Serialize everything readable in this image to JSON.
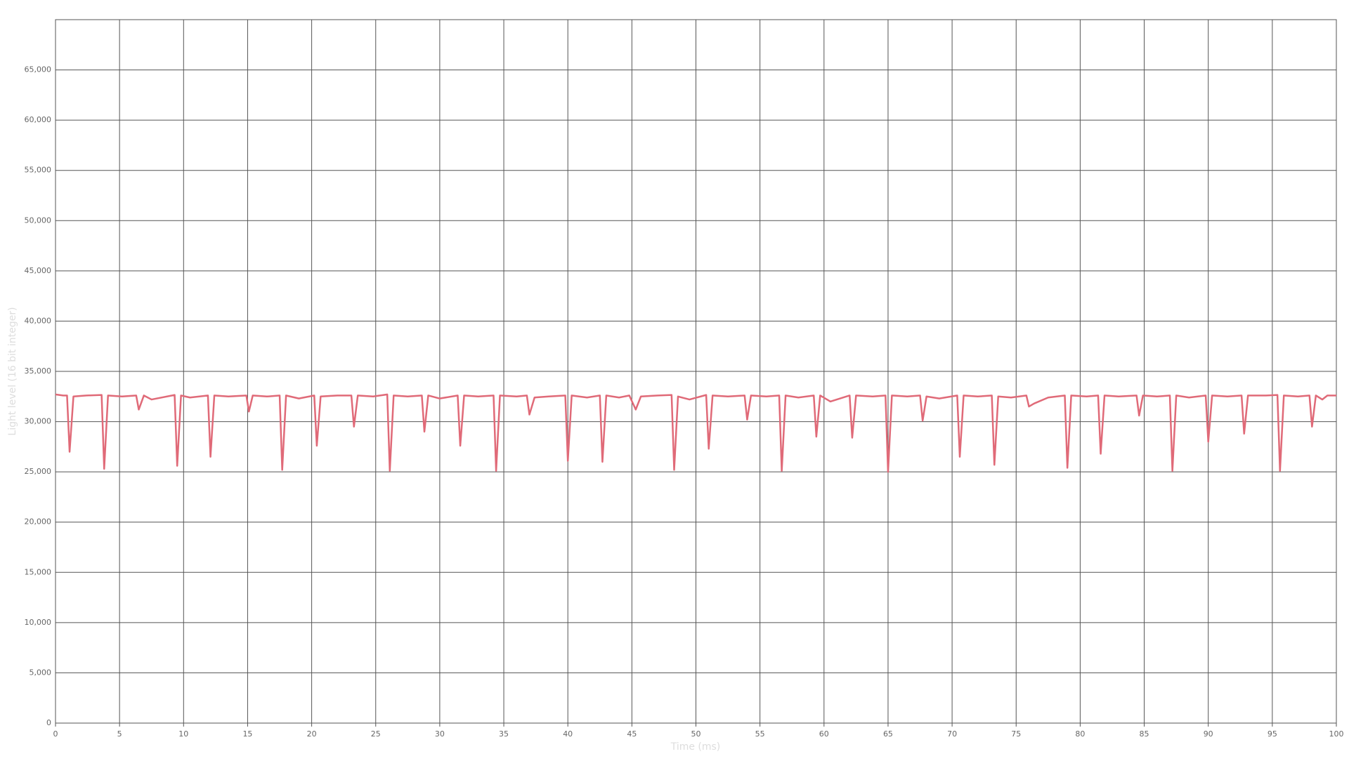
{
  "chart_data": {
    "type": "line",
    "xlabel": "Time (ms)",
    "ylabel": "Light level (16 bit integer)",
    "xlim": [
      0,
      100
    ],
    "ylim": [
      0,
      70000
    ],
    "xticks": [
      0,
      5,
      10,
      15,
      20,
      25,
      30,
      35,
      40,
      45,
      50,
      55,
      60,
      65,
      70,
      75,
      80,
      85,
      90,
      95,
      100
    ],
    "yticks": [
      0,
      {
        "value": 5000,
        "label": "5,000"
      },
      {
        "value": 10000,
        "label": "10,000"
      },
      {
        "value": 15000,
        "label": "15,000"
      },
      {
        "value": 20000,
        "label": "20,000"
      },
      {
        "value": 25000,
        "label": "25,000"
      },
      {
        "value": 30000,
        "label": "30,000"
      },
      {
        "value": 35000,
        "label": "35,000"
      },
      {
        "value": 40000,
        "label": "40,000"
      },
      {
        "value": 45000,
        "label": "45,000"
      },
      {
        "value": 50000,
        "label": "50,000"
      },
      {
        "value": 55000,
        "label": "55,000"
      },
      {
        "value": 60000,
        "label": "60,000"
      },
      {
        "value": 65000,
        "label": "65,000"
      }
    ],
    "grid": true,
    "color": "#e06a78",
    "x": [
      0,
      0.6,
      0.9,
      1.1,
      1.4,
      2.4,
      3.6,
      3.8,
      4.1,
      5.2,
      6.3,
      6.5,
      6.9,
      7.5,
      9.3,
      9.5,
      9.8,
      10.5,
      11.9,
      12.1,
      12.4,
      13.5,
      14.9,
      15.1,
      15.4,
      16.5,
      17.5,
      17.7,
      18.0,
      19.0,
      20.2,
      20.4,
      20.7,
      22.0,
      23.1,
      23.3,
      23.6,
      24.8,
      25.9,
      26.1,
      26.4,
      27.5,
      28.6,
      28.8,
      29.1,
      30.0,
      31.4,
      31.6,
      31.9,
      33.0,
      34.2,
      34.4,
      34.7,
      36.0,
      36.8,
      37.0,
      37.4,
      38.5,
      39.8,
      40.0,
      40.3,
      41.5,
      42.5,
      42.7,
      43.0,
      44.0,
      44.8,
      45.3,
      45.7,
      47.0,
      48.1,
      48.3,
      48.6,
      49.5,
      50.8,
      51.0,
      51.3,
      52.5,
      53.8,
      54.0,
      54.3,
      55.5,
      56.5,
      56.7,
      57.0,
      58.0,
      59.2,
      59.4,
      59.7,
      60.5,
      62.0,
      62.2,
      62.5,
      63.8,
      64.8,
      65.0,
      65.3,
      66.5,
      67.5,
      67.7,
      68.0,
      69.0,
      70.4,
      70.6,
      70.9,
      72.0,
      73.1,
      73.3,
      73.6,
      74.6,
      75.8,
      76.0,
      76.4,
      77.5,
      78.8,
      79.0,
      79.3,
      80.5,
      81.4,
      81.6,
      81.9,
      83.0,
      84.4,
      84.6,
      84.9,
      86.0,
      87.0,
      87.2,
      87.5,
      88.5,
      89.8,
      90.0,
      90.3,
      91.5,
      92.6,
      92.8,
      93.1,
      94.5,
      95.4,
      95.6,
      95.9,
      97.0,
      97.9,
      98.1,
      98.4,
      98.9,
      99.3,
      100
    ],
    "values": [
      32700,
      32600,
      32600,
      27000,
      32500,
      32600,
      32650,
      25300,
      32600,
      32500,
      32600,
      31200,
      32600,
      32200,
      32650,
      25600,
      32600,
      32400,
      32600,
      26500,
      32600,
      32500,
      32600,
      31000,
      32600,
      32500,
      32600,
      25200,
      32600,
      32300,
      32600,
      27600,
      32500,
      32600,
      32600,
      29500,
      32600,
      32500,
      32700,
      25100,
      32600,
      32500,
      32600,
      29000,
      32600,
      32300,
      32600,
      27600,
      32600,
      32500,
      32600,
      25100,
      32600,
      32500,
      32600,
      30700,
      32400,
      32500,
      32600,
      26100,
      32600,
      32400,
      32600,
      26000,
      32600,
      32400,
      32600,
      31200,
      32500,
      32600,
      32650,
      25200,
      32500,
      32200,
      32650,
      27300,
      32600,
      32500,
      32600,
      30200,
      32600,
      32500,
      32600,
      25100,
      32600,
      32400,
      32600,
      28500,
      32600,
      32000,
      32600,
      28400,
      32600,
      32500,
      32600,
      25000,
      32600,
      32500,
      32600,
      30100,
      32500,
      32300,
      32600,
      26500,
      32600,
      32500,
      32600,
      25700,
      32500,
      32400,
      32600,
      31500,
      31800,
      32400,
      32600,
      25400,
      32600,
      32500,
      32600,
      26800,
      32600,
      32500,
      32600,
      30600,
      32600,
      32500,
      32600,
      25100,
      32600,
      32400,
      32600,
      28000,
      32600,
      32500,
      32600,
      28800,
      32600,
      32600,
      32650,
      25100,
      32600,
      32500,
      32600,
      29500,
      32600,
      32200,
      32600,
      32600
    ]
  }
}
